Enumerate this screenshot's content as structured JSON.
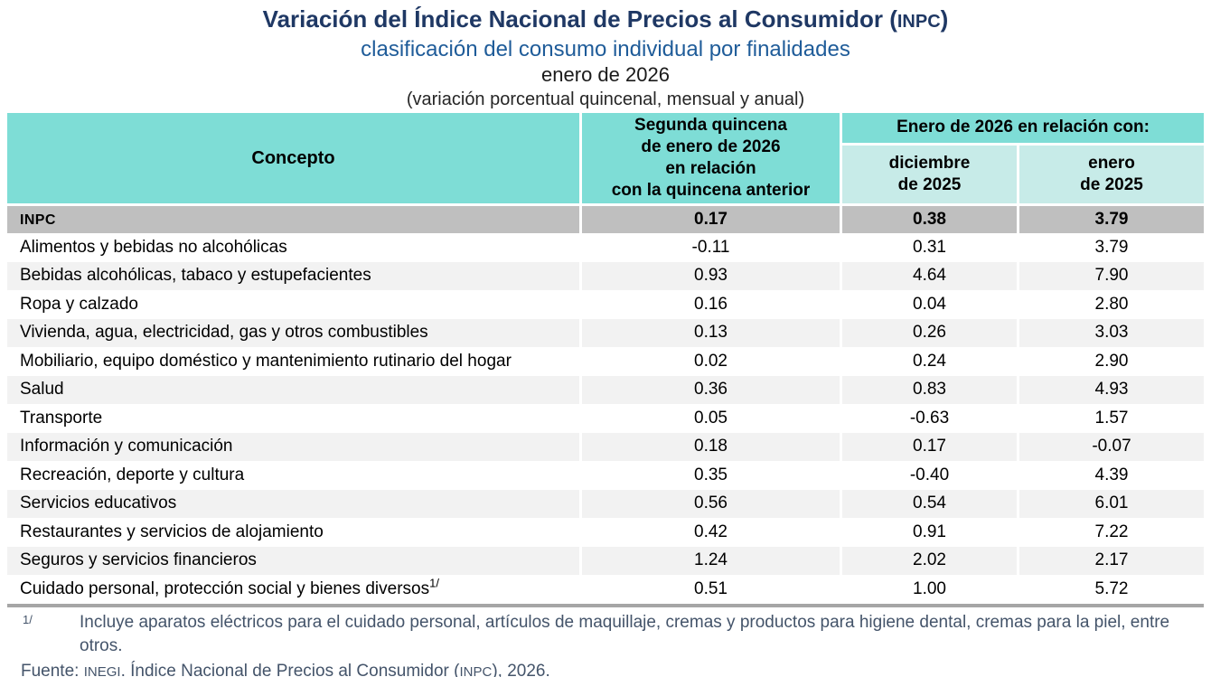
{
  "title": {
    "line1_prefix": "Variación del Índice Nacional de Precios al Consumidor (",
    "line1_acronym": "INPC",
    "line1_suffix": ")",
    "line2": "clasificación del consumo individual por finalidades",
    "line3": "enero de 2026",
    "line4": "(variación porcentual quincenal, mensual y anual)"
  },
  "table": {
    "headers": {
      "concepto": "Concepto",
      "col_quincenal": "Segunda quincena\nde enero de 2026\nen relación\ncon la quincena anterior",
      "group": "Enero de 2026 en relación con:",
      "col_mensual": "diciembre\nde 2025",
      "col_anual": "enero\nde 2025"
    },
    "rows": [
      {
        "concepto": "INPC",
        "emphasis": true,
        "quincenal": "0.17",
        "mensual": "0.38",
        "anual": "3.79"
      },
      {
        "concepto": "Alimentos y bebidas no alcohólicas",
        "quincenal": "-0.11",
        "mensual": "0.31",
        "anual": "3.79"
      },
      {
        "concepto": "Bebidas alcohólicas, tabaco y estupefacientes",
        "quincenal": "0.93",
        "mensual": "4.64",
        "anual": "7.90"
      },
      {
        "concepto": "Ropa y calzado",
        "quincenal": "0.16",
        "mensual": "0.04",
        "anual": "2.80"
      },
      {
        "concepto": "Vivienda, agua, electricidad, gas y otros combustibles",
        "quincenal": "0.13",
        "mensual": "0.26",
        "anual": "3.03"
      },
      {
        "concepto": "Mobiliario, equipo doméstico y mantenimiento rutinario del hogar",
        "quincenal": "0.02",
        "mensual": "0.24",
        "anual": "2.90"
      },
      {
        "concepto": "Salud",
        "quincenal": "0.36",
        "mensual": "0.83",
        "anual": "4.93"
      },
      {
        "concepto": "Transporte",
        "quincenal": "0.05",
        "mensual": "-0.63",
        "anual": "1.57"
      },
      {
        "concepto": "Información y comunicación",
        "quincenal": "0.18",
        "mensual": "0.17",
        "anual": "-0.07"
      },
      {
        "concepto": "Recreación, deporte y cultura",
        "quincenal": "0.35",
        "mensual": "-0.40",
        "anual": "4.39"
      },
      {
        "concepto": "Servicios educativos",
        "quincenal": "0.56",
        "mensual": "0.54",
        "anual": "6.01"
      },
      {
        "concepto": "Restaurantes y servicios de alojamiento",
        "quincenal": "0.42",
        "mensual": "0.91",
        "anual": "7.22"
      },
      {
        "concepto": "Seguros y servicios financieros",
        "quincenal": "1.24",
        "mensual": "2.02",
        "anual": "2.17"
      },
      {
        "concepto": "Cuidado personal, protección social y bienes diversos",
        "sup": "1/",
        "quincenal": "0.51",
        "mensual": "1.00",
        "anual": "5.72"
      }
    ]
  },
  "footnotes": {
    "note_marker": "1/",
    "note_text": "Incluye aparatos eléctricos para el cuidado personal, artículos de maquillaje, cremas y productos para higiene dental, cremas para la piel, entre otros.",
    "source_prefix": "Fuente: ",
    "source_inegi": "INEGI",
    "source_mid": ". Índice Nacional de Precios al Consumidor (",
    "source_inpc": "INPC",
    "source_suffix": "), 2026."
  },
  "colors": {
    "title_navy": "#1F3864",
    "subtitle_blue": "#1F5C99",
    "header_teal": "#7EDDD6",
    "subheader_teal": "#C7EBE8",
    "inpc_row_gray": "#BFBFBF",
    "stripe_gray": "#F2F2F2",
    "table_border_gray": "#A6A6A6",
    "footnote_slate": "#44546A"
  }
}
